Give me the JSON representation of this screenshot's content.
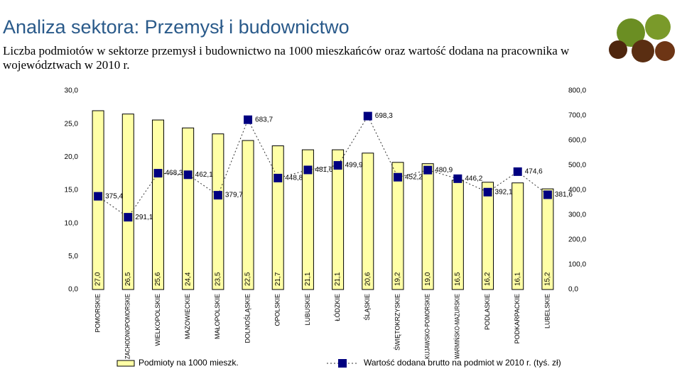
{
  "chart_data": {
    "type": "bar_line",
    "title": "Analiza sektora: Przemysł i budownictwo",
    "subtitle": "Liczba podmiotów w sektorze przemysł i budownictwo na 1000 mieszkańców oraz wartość dodana na pracownika w województwach w 2010 r.",
    "categories": [
      "POMORSKIE",
      "ZACHODNIOPOMORSKIE",
      "WIELKOPOLSKIE",
      "MAZOWIECKIE",
      "MAŁOPOLSKIE",
      "DOLNOŚLĄSKIE",
      "OPOLSKIE",
      "LUBUSKIE",
      "ŁÓDZKIE",
      "ŚLĄSKIE",
      "ŚWIĘTOKRZYSKIE",
      "KUJAWSKO-POMORSKIE",
      "WARMIŃSKO-MAZURSKIE",
      "PODLASKIE",
      "PODKARPACKIE",
      "LUBELSKIE"
    ],
    "series": [
      {
        "name": "Podmioty na 1000 mieszk.",
        "type": "bar",
        "color": "#ffffa6",
        "values": [
          27.0,
          26.5,
          25.6,
          24.4,
          23.5,
          22.5,
          21.7,
          21.1,
          21.1,
          20.6,
          19.2,
          19.0,
          16.5,
          16.2,
          16.1,
          15.2
        ],
        "value_labels": [
          "27,0",
          "26,5",
          "25,6",
          "24,4",
          "23,5",
          "22,5",
          "21,7",
          "21,1",
          "21,1",
          "20,6",
          "19,2",
          "19,0",
          "16,5",
          "16,2",
          "16,1",
          "15,2"
        ]
      },
      {
        "name": "Wartość dodana brutto na podmiot w 2010 r. (tyś. zł)",
        "type": "line",
        "axis": "y2",
        "color": "#000080",
        "values": [
          375.4,
          291.1,
          468.3,
          462.1,
          379.7,
          683.7,
          448.8,
          481.6,
          499.9,
          698.3,
          452.2,
          480.9,
          446.2,
          392.1,
          474.6,
          381.6
        ],
        "value_labels": [
          "375,4",
          "291,1",
          "468,3",
          "462,1",
          "379,7",
          "683,7",
          "448,8",
          "481,6",
          "499,9",
          "698,3",
          "452,2",
          "480,9",
          "446,2",
          "392,1",
          "474,6",
          "381,6"
        ]
      }
    ],
    "ylim": [
      0,
      30
    ],
    "yticks": [
      {
        "value": 0,
        "label": "0,0"
      },
      {
        "value": 5,
        "label": "5,0"
      },
      {
        "value": 10,
        "label": "10,0"
      },
      {
        "value": 15,
        "label": "15,0"
      },
      {
        "value": 20,
        "label": "20,0"
      },
      {
        "value": 25,
        "label": "25,0"
      },
      {
        "value": 30,
        "label": "30,0"
      }
    ],
    "y2lim": [
      0,
      800
    ],
    "y2ticks": [
      {
        "value": 0,
        "label": "0,0"
      },
      {
        "value": 100,
        "label": "100,0"
      },
      {
        "value": 200,
        "label": "200,0"
      },
      {
        "value": 300,
        "label": "300,0"
      },
      {
        "value": 400,
        "label": "400,0"
      },
      {
        "value": 500,
        "label": "500,0"
      },
      {
        "value": 600,
        "label": "600,0"
      },
      {
        "value": 700,
        "label": "700,0"
      },
      {
        "value": 800,
        "label": "800,0"
      }
    ],
    "legend": "bottom"
  }
}
